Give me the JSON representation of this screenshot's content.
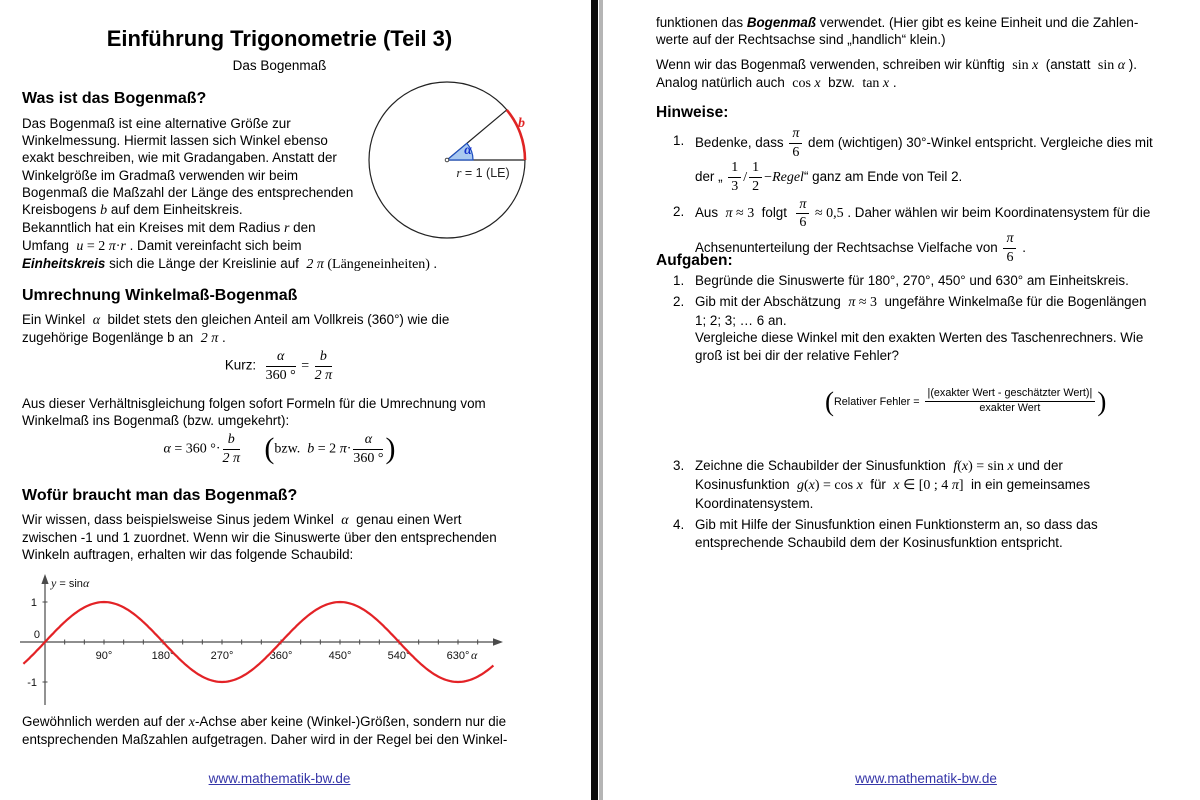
{
  "left": {
    "title": "Einführung Trigonometrie (Teil 3)",
    "subtitle": "Das Bogenmaß",
    "h1": "Was ist das Bogenmaß?",
    "p1": [
      "Das Bogenmaß ist eine alternative Größe zur",
      {
        "br": true
      },
      "Winkelmessung. Hiermit lassen sich Winkel ebenso",
      {
        "br": true
      },
      "exakt beschreiben, wie mit Gradangaben. Anstatt der",
      {
        "br": true
      },
      "Winkelgröße im Gradmaß verwenden wir beim",
      {
        "br": true
      },
      "Bogenmaß die Maßzahl der Länge des entsprechenden",
      {
        "br": true
      },
      "Kreisbogens ",
      {
        "s": "b",
        "c": "mv"
      },
      " auf dem Einheitskreis."
    ],
    "p2": [
      "Bekanntlich hat ein Kreises mit dem Radius ",
      {
        "s": "r",
        "c": "mv"
      },
      " den",
      {
        "br": true
      },
      "Umfang  ",
      {
        "s": "u",
        "c": "mv"
      },
      {
        "s": " = 2 ",
        "c": "mu"
      },
      {
        "s": "π",
        "c": "mv"
      },
      {
        "s": "·",
        "c": "mu"
      },
      {
        "s": "r",
        "c": "mv"
      },
      " . Damit vereinfacht sich beim",
      {
        "br": true
      },
      {
        "s": "Einheitskreis",
        "c": "bi"
      },
      " sich die Länge der Kreislinie auf  ",
      {
        "s": "2 π",
        "c": "mv"
      },
      {
        "s": " (Längeneinheiten) .",
        "c": "mu"
      }
    ],
    "h2": "Umrechnung Winkelmaß-Bogenmaß",
    "p3": [
      "Ein Winkel  ",
      {
        "s": "α",
        "c": "mv"
      },
      "  bildet stets den gleichen Anteil am Vollkreis (360°) wie die",
      {
        "br": true
      },
      "zugehörige Bogenlänge b an  ",
      {
        "s": "2 π",
        "c": "mv"
      },
      " ."
    ],
    "f1": [
      "Kurz:  ",
      {
        "frac": {
          "n": [
            {
              "s": "α",
              "c": "mv"
            }
          ],
          "d": [
            {
              "s": "360 °",
              "c": "mu"
            }
          ]
        }
      },
      {
        "s": " = ",
        "c": "mu"
      },
      {
        "frac": {
          "n": [
            {
              "s": "b",
              "c": "mv"
            }
          ],
          "d": [
            {
              "s": "2 π",
              "c": "mv"
            }
          ]
        }
      }
    ],
    "p4": [
      "Aus dieser Verhältnisgleichung folgen sofort Formeln für die Umrechnung vom",
      {
        "br": true
      },
      "Winkelmaß ins Bogenmaß (bzw. umgekehrt):"
    ],
    "f2": [
      {
        "s": "α",
        "c": "mv"
      },
      {
        "s": " = 360 °·",
        "c": "mu"
      },
      {
        "frac": {
          "n": [
            {
              "s": "b",
              "c": "mv"
            }
          ],
          "d": [
            {
              "s": "2 π",
              "c": "mv"
            }
          ]
        }
      },
      "      ",
      {
        "s": "(",
        "c": "big"
      },
      {
        "s": "bzw.  ",
        "c": "mu"
      },
      {
        "s": "b",
        "c": "mv"
      },
      {
        "s": " = 2 ",
        "c": "mu"
      },
      {
        "s": "π",
        "c": "mv"
      },
      {
        "s": "·",
        "c": "mu"
      },
      {
        "frac": {
          "n": [
            {
              "s": "α",
              "c": "mv"
            }
          ],
          "d": [
            {
              "s": "360 °",
              "c": "mu"
            }
          ]
        }
      },
      {
        "s": ")",
        "c": "big"
      }
    ],
    "h3": "Wofür braucht man das Bogenmaß?",
    "p5": [
      "Wir wissen, dass beispielsweise Sinus jedem Winkel  ",
      {
        "s": "α",
        "c": "mv"
      },
      "  genau einen Wert",
      {
        "br": true
      },
      "zwischen -1 und 1 zuordnet. Wenn wir die Sinuswerte über den entsprechenden",
      {
        "br": true
      },
      "Winkeln auftragen, erhalten wir das folgende Schaubild:"
    ],
    "p6": [
      "Gewöhnlich werden auf der ",
      {
        "s": "x",
        "c": "mv"
      },
      "-Achse aber keine (Winkel-)Größen, sondern nur die",
      {
        "br": true
      },
      "entsprechenden Maßzahlen aufgetragen. Daher wird in der Regel bei den Winkel-"
    ],
    "circle": {
      "alpha": "α",
      "b": "b",
      "r_var": "r",
      "r_rest": " = 1 (LE)"
    },
    "footer": "www.mathematik-bw.de"
  },
  "right": {
    "p1": [
      "funktionen das ",
      {
        "s": "Bogenmaß",
        "c": "bi"
      },
      " verwendet. (Hier gibt es keine Einheit und die Zahlen-",
      {
        "br": true
      },
      "werte auf der Rechtsachse sind „handlich“ klein.)"
    ],
    "p2": [
      "Wenn wir das Bogenmaß verwenden, schreiben wir künftig  ",
      {
        "s": "sin ",
        "c": "mu"
      },
      {
        "s": "x",
        "c": "mv"
      },
      "  (anstatt  ",
      {
        "s": "sin ",
        "c": "mu"
      },
      {
        "s": "α",
        "c": "mv"
      },
      " ).",
      {
        "br": true
      },
      "Analog natürlich auch  ",
      {
        "s": "cos ",
        "c": "mu"
      },
      {
        "s": "x",
        "c": "mv"
      },
      "  bzw.  ",
      {
        "s": "tan ",
        "c": "mu"
      },
      {
        "s": "x",
        "c": "mv"
      },
      " ."
    ],
    "hinweise_title": "Hinweise:",
    "hinweise": [
      {
        "n": "1.",
        "t": [
          "Bedenke, dass ",
          {
            "frac": {
              "n": [
                {
                  "s": "π",
                  "c": "mv"
                }
              ],
              "d": [
                {
                  "s": "6",
                  "c": "mu"
                }
              ]
            }
          },
          " dem (wichtigen) 30°-Winkel entspricht. Vergleiche dies mit",
          {
            "br": true
          },
          "der „ ",
          {
            "frac": {
              "n": [
                {
                  "s": "1",
                  "c": "mu"
                }
              ],
              "d": [
                {
                  "s": "3",
                  "c": "mu"
                }
              ]
            }
          },
          {
            "s": "/",
            "c": "mu"
          },
          {
            "frac": {
              "n": [
                {
                  "s": "1",
                  "c": "mu"
                }
              ],
              "d": [
                {
                  "s": "2",
                  "c": "mu"
                }
              ]
            }
          },
          {
            "s": "−",
            "c": "mu"
          },
          {
            "s": "Regel",
            "c": "mv"
          },
          "“ ganz am Ende von Teil 2."
        ]
      },
      {
        "n": "2.",
        "t": [
          "Aus  ",
          {
            "s": "π",
            "c": "mv"
          },
          {
            "s": " ≈ 3",
            "c": "mu"
          },
          "  folgt  ",
          {
            "frac": {
              "n": [
                {
                  "s": "π",
                  "c": "mv"
                }
              ],
              "d": [
                {
                  "s": "6",
                  "c": "mu"
                }
              ]
            }
          },
          {
            "s": " ≈ 0,5",
            "c": "mu"
          },
          " . Daher wählen wir beim Koordinatensystem für die",
          {
            "br": true
          },
          "Achsenunterteilung der Rechtsachse Vielfache von ",
          {
            "frac": {
              "n": [
                {
                  "s": "π",
                  "c": "mv"
                }
              ],
              "d": [
                {
                  "s": "6",
                  "c": "mu"
                }
              ]
            }
          },
          " ."
        ]
      }
    ],
    "aufgaben_title": "Aufgaben:",
    "aufgaben": [
      {
        "n": "1.",
        "t": [
          "Begründe die Sinuswerte für 180°, 270°, 450° und 630° am Einheitskreis."
        ]
      },
      {
        "n": "2.",
        "t": [
          "Gib mit der Abschätzung  ",
          {
            "s": "π",
            "c": "mv"
          },
          {
            "s": " ≈ 3",
            "c": "mu"
          },
          "  ungefähre Winkelmaße für die Bogenlängen",
          {
            "br": true
          },
          "1; 2; 3; … 6 an.",
          {
            "br": true
          },
          "Vergleiche diese Winkel mit den exakten Werten des Taschenrechners. Wie",
          {
            "br": true
          },
          "groß ist bei dir der relative Fehler?"
        ]
      },
      {
        "n": "3.",
        "t": [
          "Zeichne die Schaubilder der Sinusfunktion  ",
          {
            "s": "f",
            "c": "mv"
          },
          {
            "s": "(",
            "c": "mu"
          },
          {
            "s": "x",
            "c": "mv"
          },
          {
            "s": ") = sin ",
            "c": "mu"
          },
          {
            "s": "x",
            "c": "mv"
          },
          " und der",
          {
            "br": true
          },
          "Kosinusfunktion  ",
          {
            "s": "g",
            "c": "mv"
          },
          {
            "s": "(",
            "c": "mu"
          },
          {
            "s": "x",
            "c": "mv"
          },
          {
            "s": ") = cos ",
            "c": "mu"
          },
          {
            "s": "x",
            "c": "mv"
          },
          "  für  ",
          {
            "s": "x",
            "c": "mv"
          },
          {
            "s": " ∈ [0 ; 4 ",
            "c": "mu"
          },
          {
            "s": "π",
            "c": "mv"
          },
          {
            "s": "]",
            "c": "mu"
          },
          "  in ein gemeinsames",
          {
            "br": true
          },
          "Koordinatensystem."
        ]
      },
      {
        "n": "4.",
        "t": [
          "Gib mit Hilfe der Sinusfunktion einen Funktionsterm an, so dass das",
          {
            "br": true
          },
          "entsprechende Schaubild dem der Kosinusfunktion entspricht."
        ]
      }
    ],
    "rel_fehler": [
      {
        "s": "(",
        "c": "bigp"
      },
      {
        "s": "Relativer Fehler = ",
        "c": "rft"
      },
      {
        "frac": {
          "c": "rff",
          "n": [
            {
              "s": "|(exakter Wert - geschätzter Wert)|",
              "c": "rft"
            }
          ],
          "d": [
            {
              "s": "exakter Wert",
              "c": "rft"
            }
          ]
        }
      },
      {
        "s": ")",
        "c": "bigp"
      }
    ],
    "footer": "www.mathematik-bw.de"
  },
  "chart_data": {
    "type": "line",
    "title": "y = sinα",
    "title_parts": {
      "y": "y",
      "eq": " = sin",
      "arg": "α"
    },
    "xlabel": "α",
    "x_tick_labels": [
      "90°",
      "180°",
      "270°",
      "360°",
      "450°",
      "540°",
      "630°"
    ],
    "x_ticks_deg": [
      90,
      180,
      270,
      360,
      450,
      540,
      630
    ],
    "minor_tick_step_deg": 30,
    "y_ticks": [
      1,
      0,
      -1
    ],
    "x_range_deg": [
      -33,
      684
    ],
    "ylim": [
      -1.35,
      1.35
    ],
    "grid": false,
    "legend": "none",
    "series": [
      {
        "name": "y = sin(α)",
        "color": "#e32226",
        "amplitude": 1,
        "period_deg": 360
      }
    ]
  },
  "colors": {
    "curve_red": "#e32226",
    "arc_red": "#e02424",
    "angle_fill": "#a9c9f0",
    "angle_stroke": "#1d4fc0",
    "alpha_blue": "#1330cc",
    "link_blue": "#3636a8",
    "divider_black": "#0a0a0a",
    "divider_gray": "#b5b5b5"
  }
}
